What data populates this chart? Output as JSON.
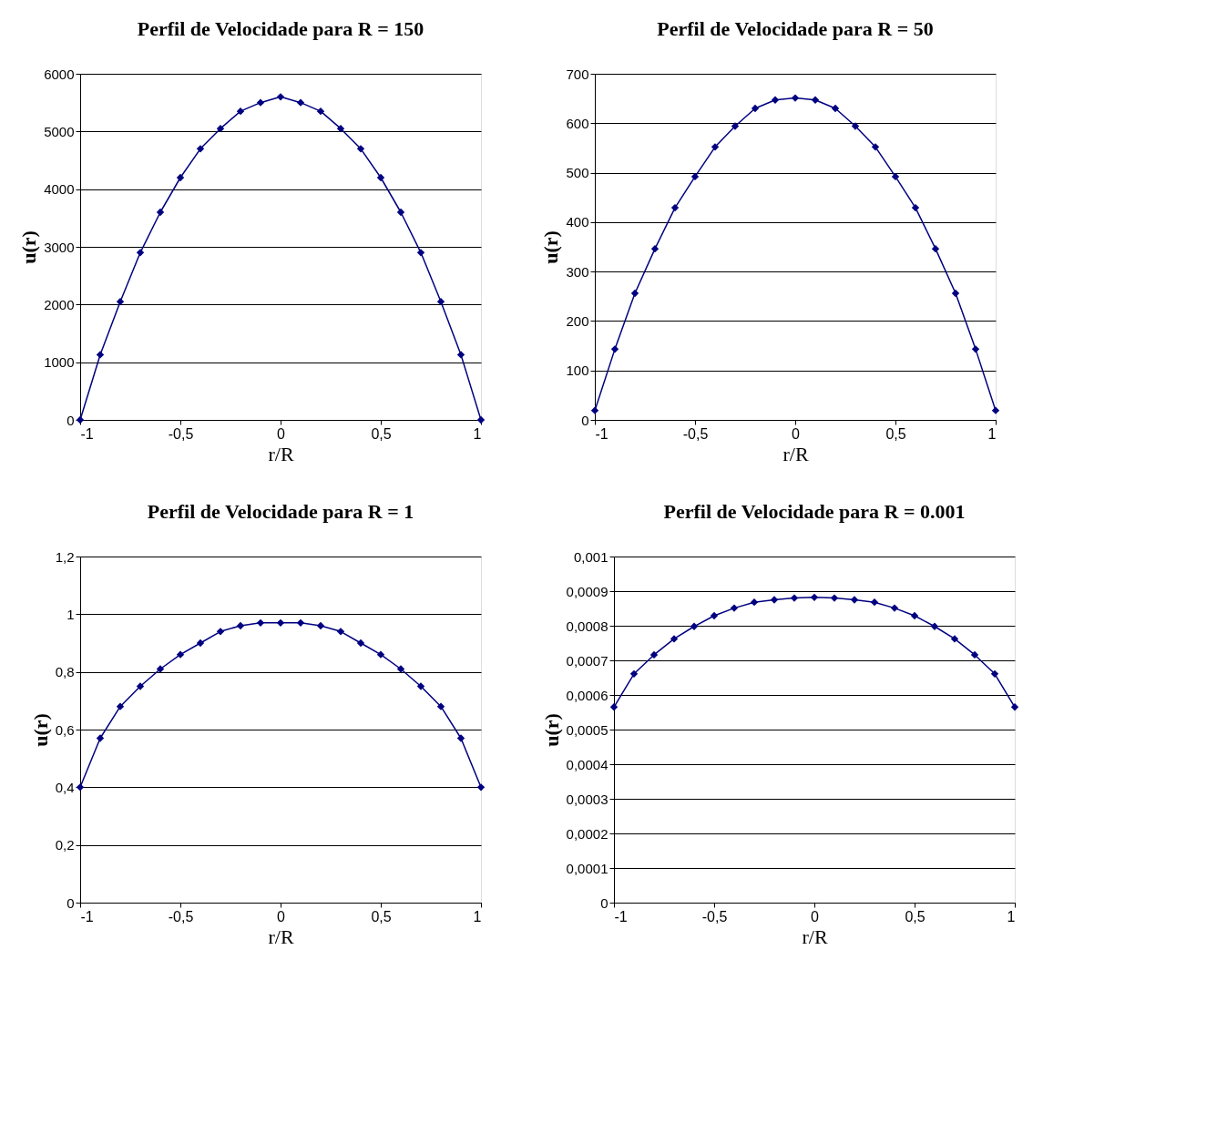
{
  "chart_data": [
    {
      "type": "line",
      "title": "Perfil de Velocidade para R = 150",
      "xlabel": "r/R",
      "ylabel": "u(r)",
      "x": [
        -1,
        -0.9,
        -0.8,
        -0.7,
        -0.6,
        -0.5,
        -0.4,
        -0.3,
        -0.2,
        -0.1,
        0,
        0.1,
        0.2,
        0.3,
        0.4,
        0.5,
        0.6,
        0.7,
        0.8,
        0.9,
        1
      ],
      "series": [
        {
          "color": "#000080",
          "values": [
            0,
            1130,
            2050,
            2900,
            3600,
            4200,
            4700,
            5050,
            5350,
            5500,
            5600,
            5500,
            5350,
            5050,
            4700,
            4200,
            3600,
            2900,
            2050,
            1130,
            0
          ]
        }
      ],
      "xlim": [
        -1,
        1
      ],
      "xticks": [
        {
          "value": -1,
          "label": "-1"
        },
        {
          "value": -0.5,
          "label": "-0,5"
        },
        {
          "value": 0,
          "label": "0"
        },
        {
          "value": 0.5,
          "label": "0,5"
        },
        {
          "value": 1,
          "label": "1"
        }
      ],
      "ylim": [
        0,
        6000
      ],
      "yticks": [
        0,
        1000,
        2000,
        3000,
        4000,
        5000,
        6000
      ],
      "grid": "y",
      "marker": "diamond",
      "line_style": "solid"
    },
    {
      "type": "line",
      "title": "Perfil de Velocidade para R = 50",
      "xlabel": "r/R",
      "ylabel": "u(r)",
      "x": [
        -1,
        -0.9,
        -0.8,
        -0.7,
        -0.6,
        -0.5,
        -0.4,
        -0.3,
        -0.2,
        -0.1,
        0,
        0.1,
        0.2,
        0.3,
        0.4,
        0.5,
        0.6,
        0.7,
        0.8,
        0.9,
        1
      ],
      "series": [
        {
          "color": "#000080",
          "values": [
            19,
            143,
            256,
            346,
            429,
            492,
            552,
            594,
            630,
            647,
            651,
            647,
            630,
            594,
            552,
            492,
            429,
            346,
            256,
            143,
            19
          ]
        }
      ],
      "xlim": [
        -1,
        1
      ],
      "xticks": [
        {
          "value": -1,
          "label": "-1"
        },
        {
          "value": -0.5,
          "label": "-0,5"
        },
        {
          "value": 0,
          "label": "0"
        },
        {
          "value": 0.5,
          "label": "0,5"
        },
        {
          "value": 1,
          "label": "1"
        }
      ],
      "ylim": [
        0,
        700
      ],
      "yticks": [
        0,
        100,
        200,
        300,
        400,
        500,
        600,
        700
      ],
      "grid": "y",
      "marker": "diamond",
      "line_style": "solid"
    },
    {
      "type": "line",
      "title": "Perfil de Velocidade para R = 1",
      "xlabel": "r/R",
      "ylabel": "u(r)",
      "x": [
        -1,
        -0.9,
        -0.8,
        -0.7,
        -0.6,
        -0.5,
        -0.4,
        -0.3,
        -0.2,
        -0.1,
        0,
        0.1,
        0.2,
        0.3,
        0.4,
        0.5,
        0.6,
        0.7,
        0.8,
        0.9,
        1
      ],
      "series": [
        {
          "color": "#000080",
          "values": [
            0.4,
            0.57,
            0.68,
            0.75,
            0.81,
            0.86,
            0.9,
            0.94,
            0.96,
            0.97,
            0.97,
            0.97,
            0.96,
            0.94,
            0.9,
            0.86,
            0.81,
            0.75,
            0.68,
            0.57,
            0.4
          ]
        }
      ],
      "xlim": [
        -1,
        1
      ],
      "xticks": [
        {
          "value": -1,
          "label": "-1"
        },
        {
          "value": -0.5,
          "label": "-0,5"
        },
        {
          "value": 0,
          "label": "0"
        },
        {
          "value": 0.5,
          "label": "0,5"
        },
        {
          "value": 1,
          "label": "1"
        }
      ],
      "ylim": [
        0,
        1.2
      ],
      "yticks": [
        {
          "value": 0,
          "label": "0"
        },
        {
          "value": 0.2,
          "label": "0,2"
        },
        {
          "value": 0.4,
          "label": "0,4"
        },
        {
          "value": 0.6,
          "label": "0,6"
        },
        {
          "value": 0.8,
          "label": "0,8"
        },
        {
          "value": 1,
          "label": "1"
        },
        {
          "value": 1.2,
          "label": "1,2"
        }
      ],
      "grid": "y",
      "marker": "diamond",
      "line_style": "solid"
    },
    {
      "type": "line",
      "title": "Perfil de Velocidade para R = 0.001",
      "xlabel": "r/R",
      "ylabel": "u(r)",
      "x": [
        -1,
        -0.9,
        -0.8,
        -0.7,
        -0.6,
        -0.5,
        -0.4,
        -0.3,
        -0.2,
        -0.1,
        0,
        0.1,
        0.2,
        0.3,
        0.4,
        0.5,
        0.6,
        0.7,
        0.8,
        0.9,
        1
      ],
      "series": [
        {
          "color": "#000080",
          "values": [
            0.000565,
            0.000661,
            0.000716,
            0.000762,
            0.000798,
            0.000829,
            0.000851,
            0.000868,
            0.000875,
            0.00088,
            0.000882,
            0.00088,
            0.000875,
            0.000868,
            0.000851,
            0.000829,
            0.000798,
            0.000762,
            0.000716,
            0.000661,
            0.000565
          ]
        }
      ],
      "xlim": [
        -1,
        1
      ],
      "xticks": [
        {
          "value": -1,
          "label": "-1"
        },
        {
          "value": -0.5,
          "label": "-0,5"
        },
        {
          "value": 0,
          "label": "0"
        },
        {
          "value": 0.5,
          "label": "0,5"
        },
        {
          "value": 1,
          "label": "1"
        }
      ],
      "ylim": [
        0,
        0.001
      ],
      "yticks": [
        {
          "value": 0,
          "label": "0"
        },
        {
          "value": 0.0001,
          "label": "0,0001"
        },
        {
          "value": 0.0002,
          "label": "0,0002"
        },
        {
          "value": 0.0003,
          "label": "0,0003"
        },
        {
          "value": 0.0004,
          "label": "0,0004"
        },
        {
          "value": 0.0005,
          "label": "0,0005"
        },
        {
          "value": 0.0006,
          "label": "0,0006"
        },
        {
          "value": 0.0007,
          "label": "0,0007"
        },
        {
          "value": 0.0008,
          "label": "0,0008"
        },
        {
          "value": 0.0009,
          "label": "0,0009"
        },
        {
          "value": 0.001,
          "label": "0,001"
        }
      ],
      "grid": "y",
      "marker": "diamond",
      "line_style": "solid"
    }
  ]
}
